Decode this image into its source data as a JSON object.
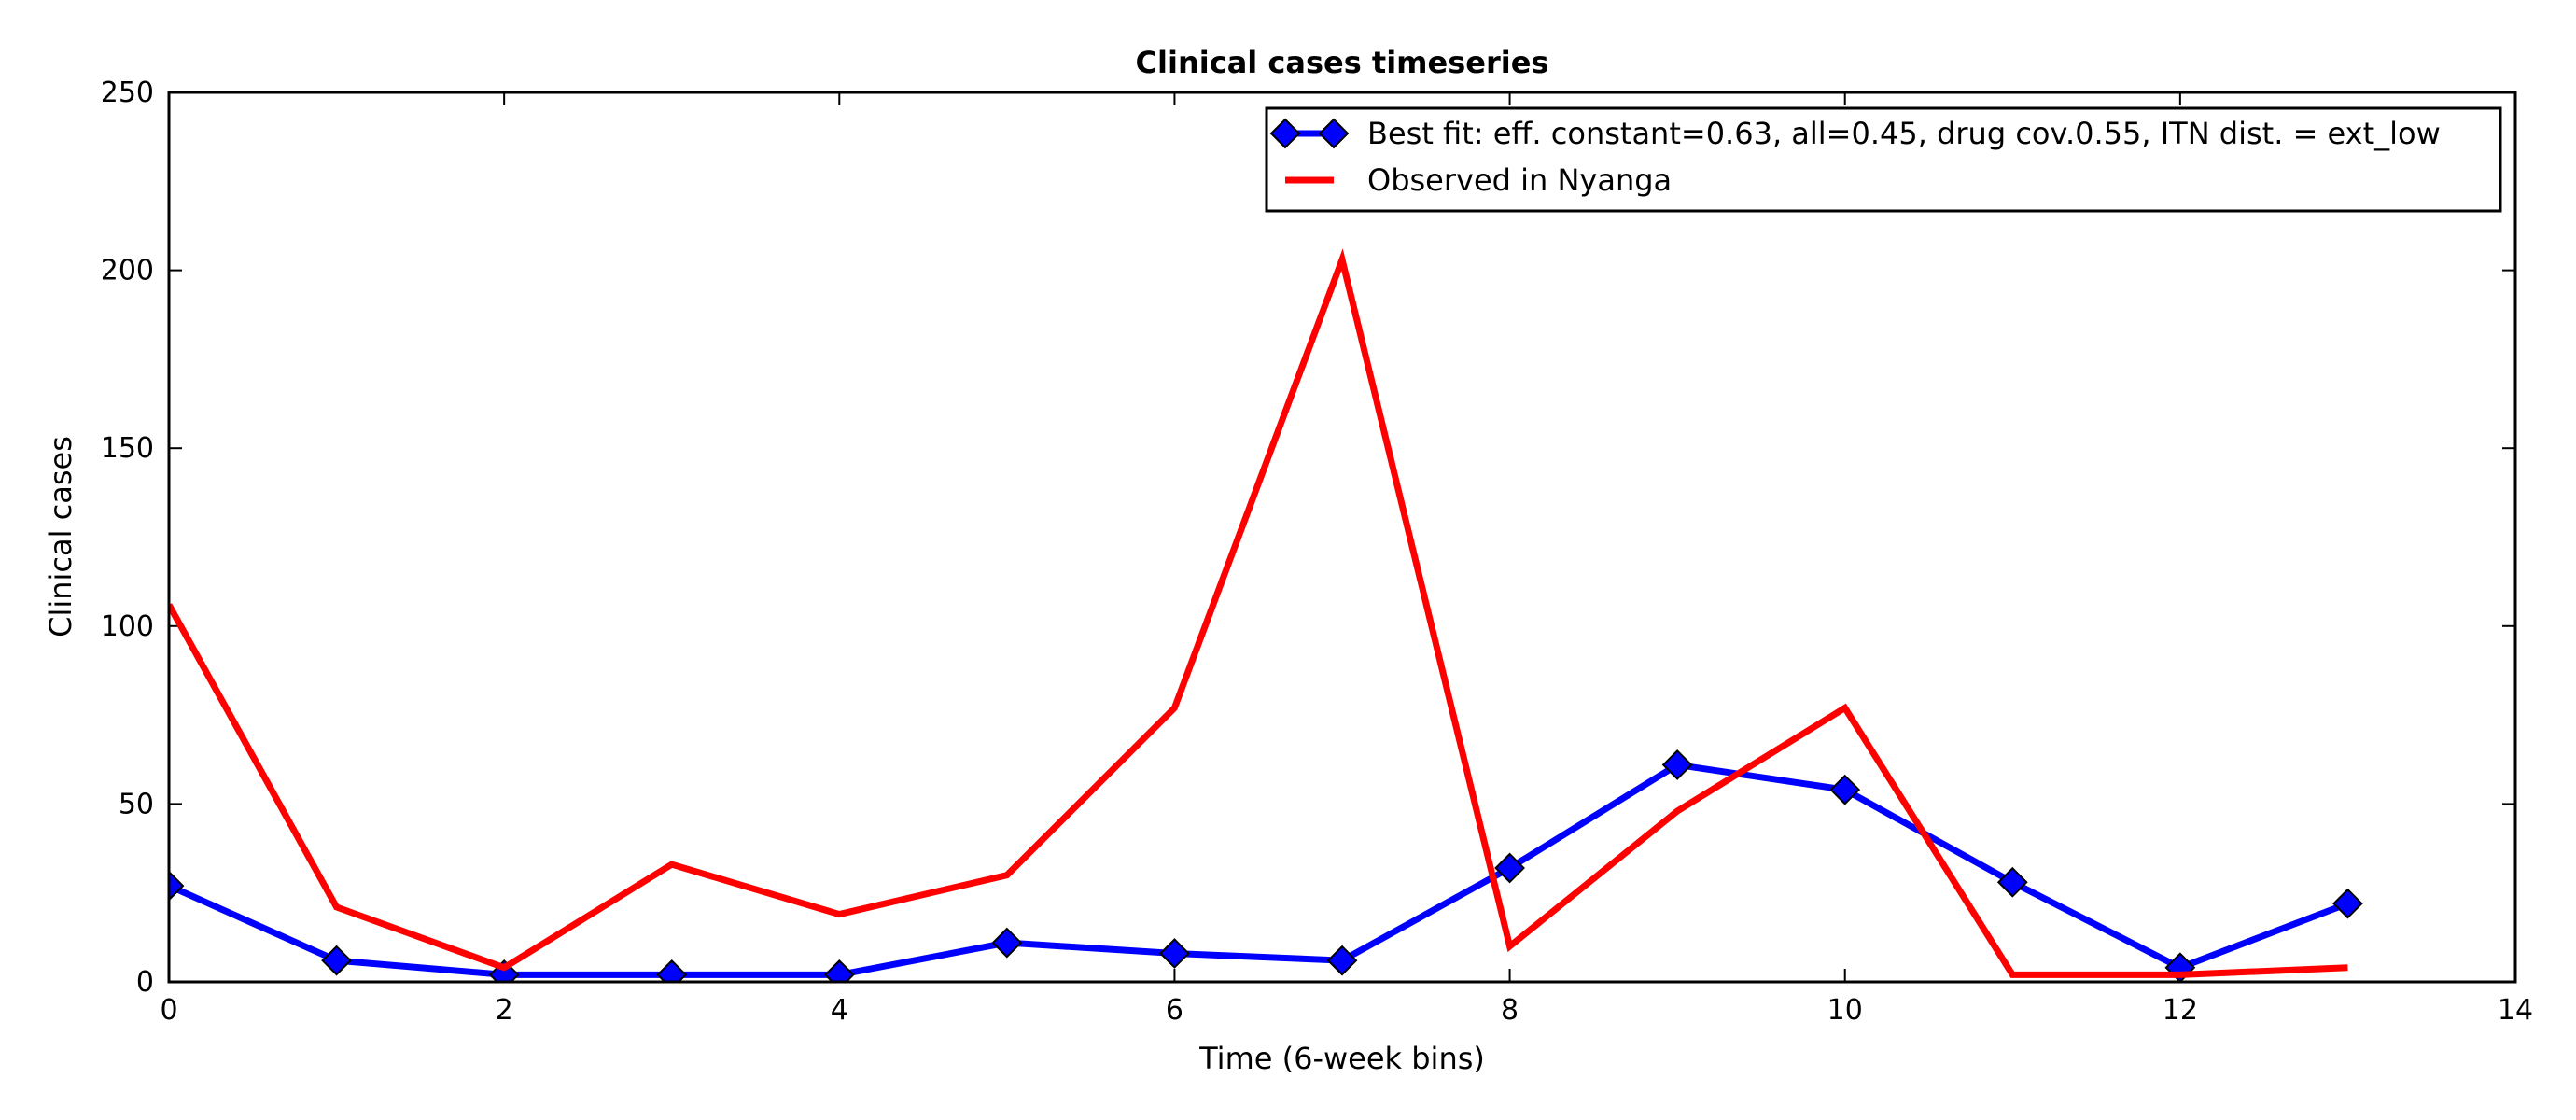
{
  "chart_data": {
    "type": "line",
    "title": "Clinical cases timeseries",
    "xlabel": "Time (6-week bins)",
    "ylabel": "Clinical cases",
    "xlim": [
      0,
      14
    ],
    "ylim": [
      0,
      250
    ],
    "xticks": [
      0,
      2,
      4,
      6,
      8,
      10,
      12,
      14
    ],
    "yticks": [
      0,
      50,
      100,
      150,
      200,
      250
    ],
    "grid": false,
    "legend_position": "top-right",
    "series": [
      {
        "name": "Best fit: eff. constant=0.63, all=0.45, drug cov.0.55, ITN dist. = ext_low",
        "color": "#0000ff",
        "marker": "diamond",
        "x": [
          0,
          1,
          2,
          3,
          4,
          5,
          6,
          7,
          8,
          9,
          10,
          11,
          12,
          13
        ],
        "y": [
          27,
          6,
          2,
          2,
          2,
          11,
          8,
          6,
          32,
          61,
          54,
          28,
          4,
          22
        ]
      },
      {
        "name": "Observed in Nyanga",
        "color": "#ff0000",
        "marker": "none",
        "x": [
          0,
          1,
          2,
          3,
          4,
          5,
          6,
          7,
          8,
          9,
          10,
          11,
          12,
          13
        ],
        "y": [
          106,
          21,
          4,
          33,
          19,
          30,
          77,
          203,
          10,
          48,
          77,
          2,
          2,
          4
        ]
      }
    ]
  }
}
